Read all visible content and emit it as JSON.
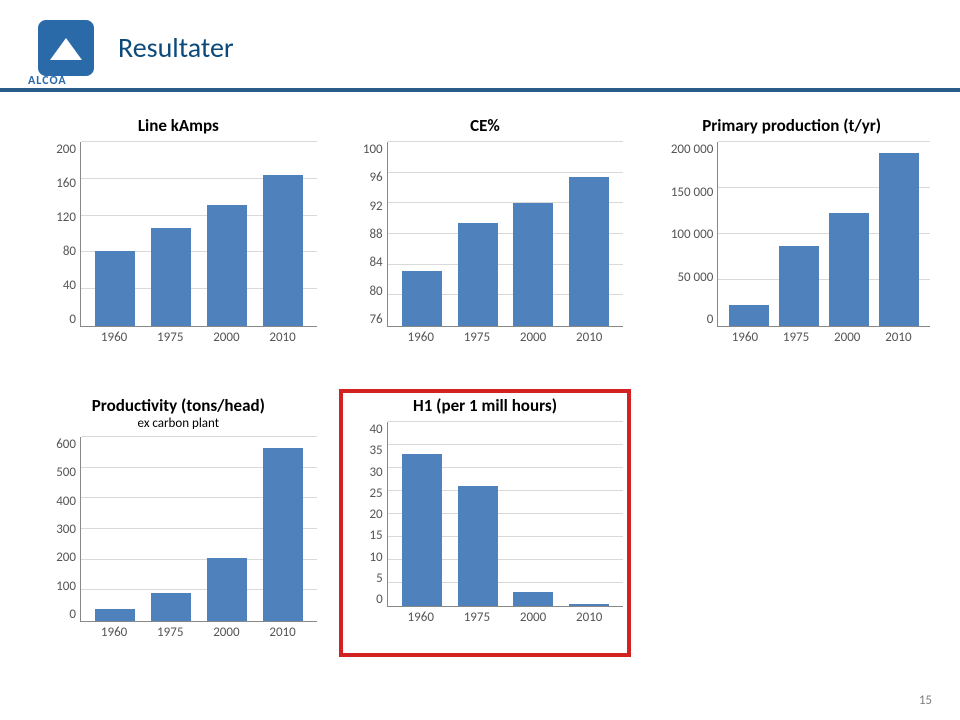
{
  "title": "Resultater",
  "logo_text": "ALCOA",
  "page_number": "15",
  "header_bar_color": "#2a5c8a",
  "logo_bg": "#2a6aa8",
  "bar_color": "#4f81bd",
  "grid_color": "#d9d9d9",
  "axis_color": "#888888",
  "highlight_color": "#d22222",
  "charts": [
    {
      "id": "line_kamps",
      "title": "Line kAmps",
      "subtitle": "",
      "categories": [
        "1960",
        "1975",
        "2000",
        "2010"
      ],
      "values": [
        81,
        107,
        131,
        164
      ],
      "ymin": 0,
      "ymax": 200,
      "yticks": [
        0,
        40,
        80,
        120,
        160,
        200
      ]
    },
    {
      "id": "ce_pct",
      "title": "CE%",
      "subtitle": "",
      "categories": [
        "1960",
        "1975",
        "2000",
        "2010"
      ],
      "values": [
        83.2,
        89.5,
        92,
        95.4
      ],
      "ymin": 76,
      "ymax": 100,
      "yticks": [
        76,
        80,
        84,
        88,
        92,
        96,
        100
      ]
    },
    {
      "id": "primary_prod",
      "title": "Primary production (t/yr)",
      "subtitle": "",
      "categories": [
        "1960",
        "1975",
        "2000",
        "2010"
      ],
      "values": [
        23000,
        87000,
        123000,
        188000
      ],
      "ymin": 0,
      "ymax": 200000,
      "yticks": [
        0,
        50000,
        100000,
        150000,
        200000
      ],
      "ytick_labels": [
        "0",
        "50 000",
        "100 000",
        "150 000",
        "200 000"
      ]
    },
    {
      "id": "productivity",
      "title": "Productivity (tons/head)",
      "subtitle": "ex carbon plant",
      "categories": [
        "1960",
        "1975",
        "2000",
        "2010"
      ],
      "values": [
        40,
        90,
        205,
        565
      ],
      "ymin": 0,
      "ymax": 600,
      "yticks": [
        0,
        100,
        200,
        300,
        400,
        500,
        600
      ]
    },
    {
      "id": "h1",
      "title": "H1 (per 1 mill hours)",
      "subtitle": "",
      "categories": [
        "1960",
        "1975",
        "2000",
        "2010"
      ],
      "values": [
        33,
        26,
        3,
        0.5
      ],
      "ymin": 0,
      "ymax": 40,
      "yticks": [
        0,
        5,
        10,
        15,
        20,
        25,
        30,
        35,
        40
      ],
      "highlight": true
    }
  ]
}
